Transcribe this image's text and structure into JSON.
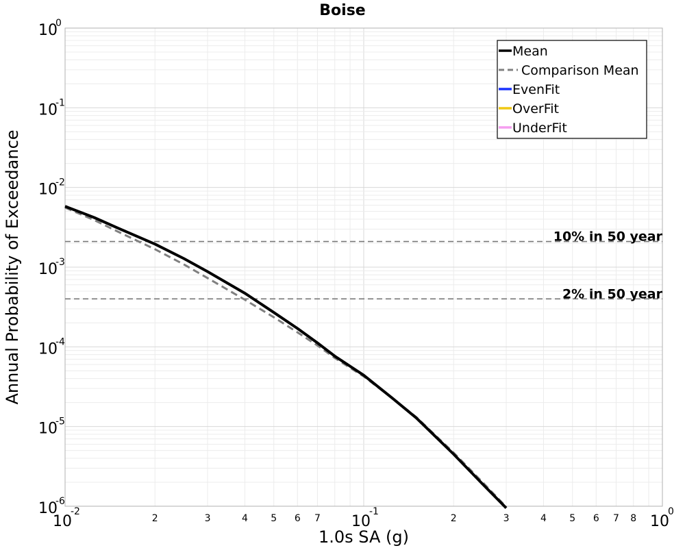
{
  "chart_data": {
    "type": "line",
    "title": "Boise",
    "xlabel": "1.0s SA (g)",
    "ylabel": "Annual Probability of Exceedance",
    "x_scale": "log",
    "y_scale": "log",
    "xlim": [
      0.01,
      1
    ],
    "ylim": [
      1e-06,
      1
    ],
    "grid": true,
    "legend_position": "top-right",
    "x_major_ticks": [
      {
        "value": 0.01,
        "base": "10",
        "exp": "-2"
      },
      {
        "value": 0.1,
        "base": "10",
        "exp": "-1"
      },
      {
        "value": 1,
        "base": "10",
        "exp": "0"
      }
    ],
    "x_minor_ticks": [
      {
        "value": 0.02,
        "label": "2"
      },
      {
        "value": 0.03,
        "label": "3"
      },
      {
        "value": 0.04,
        "label": "4"
      },
      {
        "value": 0.05,
        "label": "5"
      },
      {
        "value": 0.06,
        "label": "6"
      },
      {
        "value": 0.07,
        "label": "7"
      },
      {
        "value": 0.2,
        "label": "2"
      },
      {
        "value": 0.3,
        "label": "3"
      },
      {
        "value": 0.4,
        "label": "4"
      },
      {
        "value": 0.5,
        "label": "5"
      },
      {
        "value": 0.6,
        "label": "6"
      },
      {
        "value": 0.7,
        "label": "7"
      },
      {
        "value": 0.8,
        "label": "8"
      }
    ],
    "y_major_ticks": [
      {
        "value": 1,
        "base": "10",
        "exp": "0"
      },
      {
        "value": 0.1,
        "base": "10",
        "exp": "-1"
      },
      {
        "value": 0.01,
        "base": "10",
        "exp": "-2"
      },
      {
        "value": 0.001,
        "base": "10",
        "exp": "-3"
      },
      {
        "value": 0.0001,
        "base": "10",
        "exp": "-4"
      },
      {
        "value": 1e-05,
        "base": "10",
        "exp": "-5"
      },
      {
        "value": 1e-06,
        "base": "10",
        "exp": "-6"
      }
    ],
    "reference_lines": [
      {
        "label": "10% in 50 year",
        "y": 0.0021
      },
      {
        "label": "2% in 50 year",
        "y": 0.0004
      }
    ],
    "series": [
      {
        "name": "Mean",
        "color": "#000000",
        "style": "solid",
        "x": [
          0.01,
          0.0125,
          0.015,
          0.02,
          0.025,
          0.03,
          0.04,
          0.05,
          0.06,
          0.07,
          0.08,
          0.1,
          0.125,
          0.15,
          0.2,
          0.25,
          0.3
        ],
        "y": [
          0.0058,
          0.0042,
          0.0031,
          0.00195,
          0.00128,
          0.00088,
          0.00047,
          0.00027,
          0.00017,
          0.000112,
          7.65e-05,
          4.4e-05,
          2.25e-05,
          1.28e-05,
          4.5e-06,
          1.9e-06,
          9.5e-07
        ]
      },
      {
        "name": "Comparison Mean",
        "color": "#808080",
        "style": "dashed",
        "x": [
          0.01,
          0.0125,
          0.015,
          0.02,
          0.025,
          0.03,
          0.04,
          0.05,
          0.06,
          0.07,
          0.08,
          0.1,
          0.125,
          0.15,
          0.2,
          0.25,
          0.3
        ],
        "y": [
          0.0056,
          0.0039,
          0.0028,
          0.00168,
          0.00108,
          0.00073,
          0.00039,
          0.000235,
          0.000152,
          0.000104,
          7.25e-05,
          4.25e-05,
          2.25e-05,
          1.31e-05,
          4.7e-06,
          2e-06,
          9.8e-07
        ]
      },
      {
        "name": "EvenFit",
        "color": "#1a33ff",
        "style": "solid",
        "x": [],
        "y": []
      },
      {
        "name": "OverFit",
        "color": "#f0c814",
        "style": "solid",
        "x": [],
        "y": []
      },
      {
        "name": "UnderFit",
        "color": "#f59ef0",
        "style": "solid",
        "x": [],
        "y": []
      }
    ]
  }
}
